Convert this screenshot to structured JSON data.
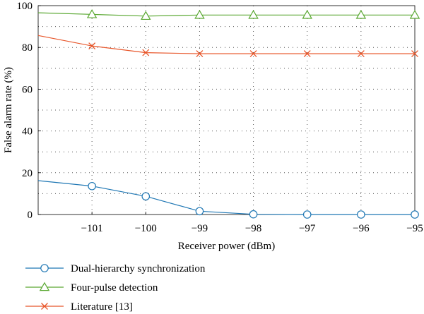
{
  "chart_data": {
    "type": "line",
    "xlabel": "Receiver power (dBm)",
    "ylabel": "False alarm rate (%)",
    "xlim": [
      -102,
      -95
    ],
    "ylim": [
      0,
      100
    ],
    "x_ticks": [
      -101,
      -100,
      -99,
      -98,
      -97,
      -96,
      -95
    ],
    "x_tick_labels": [
      "−101",
      "−100",
      "−99",
      "−98",
      "−97",
      "−96",
      "−95"
    ],
    "y_ticks": [
      0,
      20,
      40,
      60,
      80,
      100
    ],
    "y_tick_labels": [
      "0",
      "20",
      "40",
      "60",
      "80",
      "100"
    ],
    "grid": "dotted",
    "legend_position": "bottom",
    "series": [
      {
        "name": "Dual-hierarchy synchronization",
        "color": "#1f77b4",
        "marker": "circle",
        "x": [
          -102,
          -101,
          -100,
          -99,
          -98,
          -97,
          -96,
          -95
        ],
        "y": [
          16.2,
          13.6,
          8.7,
          1.6,
          0.1,
          0,
          0,
          0
        ],
        "marker_x": [
          -101,
          -100,
          -99,
          -98,
          -97,
          -96,
          -95
        ],
        "marker_y": [
          13.6,
          8.7,
          1.6,
          0.1,
          0,
          0,
          0
        ]
      },
      {
        "name": "Four-pulse detection",
        "color": "#5aa832",
        "marker": "triangle",
        "x": [
          -102,
          -101,
          -100,
          -99,
          -98,
          -97,
          -96,
          -95
        ],
        "y": [
          96.6,
          95.8,
          95.0,
          95.5,
          95.5,
          95.5,
          95.5,
          95.5
        ],
        "marker_x": [
          -101,
          -100,
          -99,
          -98,
          -97,
          -96,
          -95
        ],
        "marker_y": [
          95.8,
          95.0,
          95.5,
          95.5,
          95.5,
          95.5,
          95.5
        ]
      },
      {
        "name": "Literature [13]",
        "color": "#e8562a",
        "marker": "x",
        "x": [
          -102,
          -101,
          -100,
          -99,
          -98,
          -97,
          -96,
          -95
        ],
        "y": [
          85.7,
          80.7,
          77.5,
          77.0,
          77.0,
          77.0,
          77.0,
          77.0
        ],
        "marker_x": [
          -101,
          -100,
          -99,
          -98,
          -97,
          -96,
          -95
        ],
        "marker_y": [
          80.7,
          77.5,
          77.0,
          77.0,
          77.0,
          77.0,
          77.0
        ]
      }
    ]
  }
}
